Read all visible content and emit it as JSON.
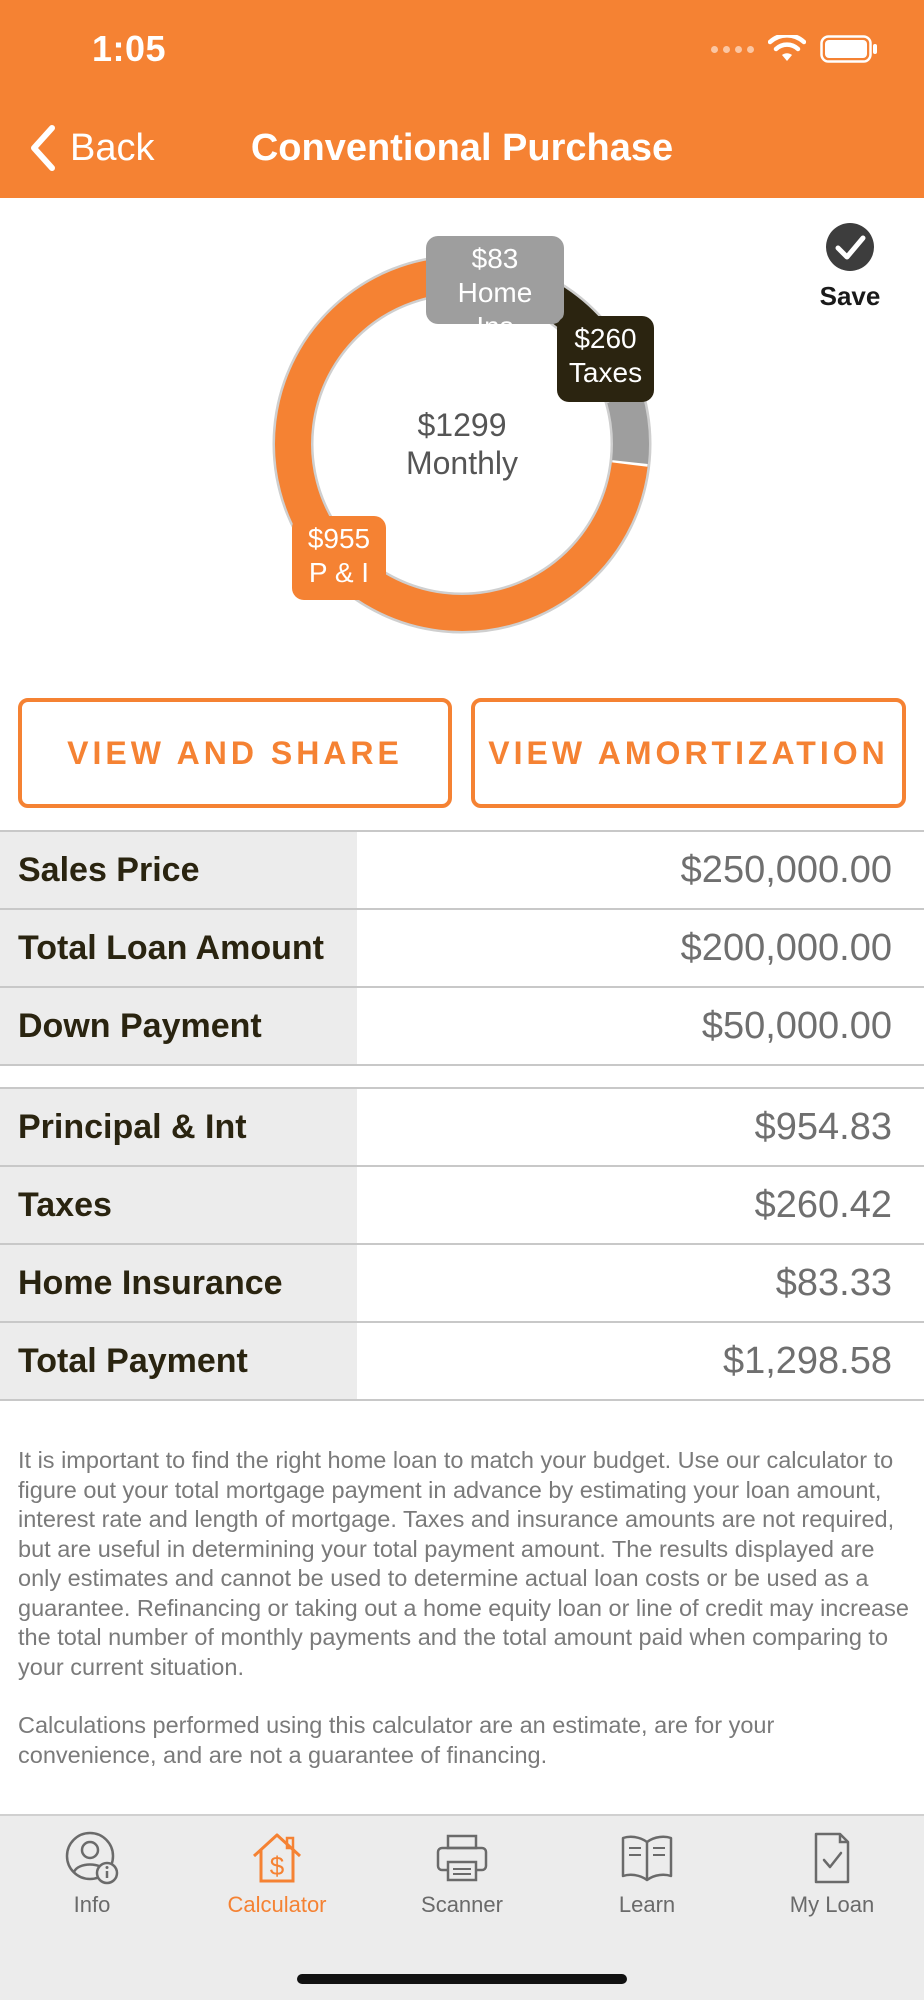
{
  "status_bar": {
    "time": "1:05"
  },
  "nav": {
    "back_label": "Back",
    "title": "Conventional Purchase"
  },
  "save": {
    "label": "Save"
  },
  "colors": {
    "accent": "#f58233",
    "taxes": "#2b2410",
    "insurance": "#9e9e9e"
  },
  "chart_data": {
    "type": "pie",
    "center_value": "$1299",
    "center_caption": "Monthly",
    "slices": [
      {
        "value": 955,
        "label_value": "$955",
        "label_name": "P & I",
        "color": "#f58233"
      },
      {
        "value": 260,
        "label_value": "$260",
        "label_name": "Taxes",
        "color": "#2b2410"
      },
      {
        "value": 83,
        "label_value": "$83",
        "label_name": "Home Ins",
        "color": "#9e9e9e"
      }
    ]
  },
  "actions": {
    "view_share": "VIEW AND SHARE",
    "view_amortization": "VIEW AMORTIZATION"
  },
  "loan_table": [
    {
      "label": "Sales Price",
      "value": "$250,000.00"
    },
    {
      "label": "Total Loan Amount",
      "value": "$200,000.00"
    },
    {
      "label": "Down Payment",
      "value": "$50,000.00"
    }
  ],
  "payment_table": [
    {
      "label": "Principal & Int",
      "value": "$954.83"
    },
    {
      "label": "Taxes",
      "value": "$260.42"
    },
    {
      "label": "Home Insurance",
      "value": "$83.33"
    },
    {
      "label": "Total Payment",
      "value": "$1,298.58"
    }
  ],
  "disclaimer": {
    "paragraph1": "It is important to find the right home loan to match your budget. Use our calculator to figure out your total mortgage payment in advance by estimating your loan amount, interest rate and length of mortgage. Taxes and insurance amounts are not required, but are useful in determining your total payment amount.  The results displayed are only estimates and cannot be used to determine actual loan costs or be used as a guarantee. Refinancing or taking out a home equity loan or line of credit may increase the total number of monthly payments and the total amount paid when comparing to your current situation.",
    "paragraph2": "Calculations performed using this calculator are an estimate, are for your convenience, and are not a guarantee of financing."
  },
  "tabs": [
    {
      "label": "Info",
      "icon": "info-user-icon",
      "active": false
    },
    {
      "label": "Calculator",
      "icon": "calculator-house-icon",
      "active": true
    },
    {
      "label": "Scanner",
      "icon": "scanner-icon",
      "active": false
    },
    {
      "label": "Learn",
      "icon": "book-icon",
      "active": false
    },
    {
      "label": "My Loan",
      "icon": "document-check-icon",
      "active": false
    }
  ]
}
